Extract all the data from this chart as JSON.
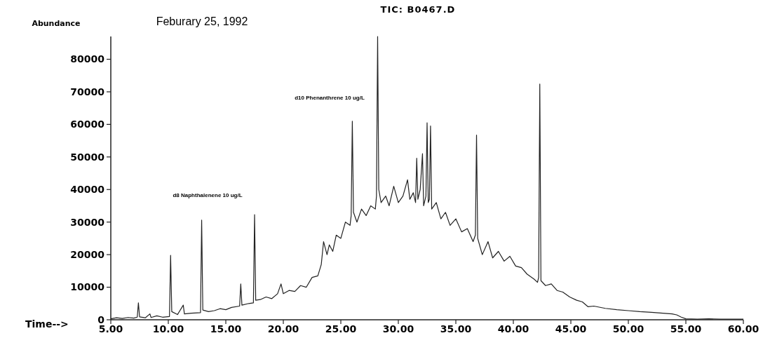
{
  "chart_data": {
    "type": "line",
    "title": "TIC: B0467.D",
    "subtitle": "Feburary 25, 1992",
    "ylabel": "Abundance",
    "xlabel": "Time-->",
    "annotations": [
      "d8 Naphthalenene 10 ug/L",
      "d10 Phenanthrene 10 ug/L"
    ],
    "xlim": [
      5,
      60
    ],
    "ylim": [
      0,
      87000
    ],
    "xticks": [
      {
        "value": 5,
        "label": "5.00"
      },
      {
        "value": 10,
        "label": "10.00"
      },
      {
        "value": 15,
        "label": "15.00"
      },
      {
        "value": 20,
        "label": "20.00"
      },
      {
        "value": 25,
        "label": "25.00"
      },
      {
        "value": 30,
        "label": "30.00"
      },
      {
        "value": 35,
        "label": "35.00"
      },
      {
        "value": 40,
        "label": "40.00"
      },
      {
        "value": 45,
        "label": "45.00"
      },
      {
        "value": 50,
        "label": "50.00"
      },
      {
        "value": 55,
        "label": "55.00"
      },
      {
        "value": 60,
        "label": "60.00"
      }
    ],
    "yticks": [
      0,
      10000,
      20000,
      30000,
      40000,
      50000,
      60000,
      70000,
      80000
    ],
    "grid": false,
    "marker": "none",
    "line_style": "solid",
    "series": [
      {
        "color": "#222222",
        "x": [
          5.0,
          5.5,
          6.0,
          6.5,
          7.0,
          7.3,
          7.4,
          7.5,
          8.0,
          8.4,
          8.5,
          9.0,
          9.5,
          10.1,
          10.2,
          10.3,
          10.8,
          11.3,
          11.4,
          12.0,
          12.8,
          12.9,
          13.0,
          13.5,
          14.0,
          14.5,
          15.0,
          15.5,
          16.2,
          16.3,
          16.4,
          17.0,
          17.4,
          17.5,
          17.6,
          18.0,
          18.5,
          19.0,
          19.5,
          19.8,
          20.0,
          20.5,
          21.0,
          21.5,
          22.0,
          22.5,
          23.0,
          23.3,
          23.5,
          23.8,
          24.0,
          24.3,
          24.6,
          25.0,
          25.4,
          25.8,
          25.9,
          26.0,
          26.1,
          26.4,
          26.8,
          27.2,
          27.6,
          28.0,
          28.1,
          28.2,
          28.3,
          28.5,
          28.9,
          29.2,
          29.6,
          30.0,
          30.4,
          30.8,
          31.0,
          31.3,
          31.5,
          31.6,
          31.7,
          31.9,
          32.1,
          32.2,
          32.4,
          32.5,
          32.6,
          32.7,
          32.8,
          32.9,
          33.3,
          33.7,
          34.1,
          34.5,
          35.0,
          35.5,
          36.0,
          36.5,
          36.7,
          36.8,
          36.9,
          37.3,
          37.8,
          38.2,
          38.7,
          39.2,
          39.7,
          40.2,
          40.7,
          41.2,
          41.8,
          42.1,
          42.2,
          42.3,
          42.4,
          42.8,
          43.3,
          43.8,
          44.3,
          44.9,
          45.5,
          46.0,
          46.5,
          47.0,
          48.0,
          49.0,
          50.0,
          51.0,
          52.0,
          53.0,
          53.8,
          54.2,
          54.6,
          55.0,
          56.0,
          57.0,
          58.0,
          59.0,
          60.0
        ],
        "values": [
          300,
          600,
          400,
          700,
          500,
          800,
          5200,
          900,
          600,
          1800,
          700,
          1200,
          800,
          1000,
          19800,
          2500,
          1600,
          4500,
          1800,
          2000,
          2200,
          30600,
          3000,
          2500,
          2800,
          3400,
          3100,
          3800,
          4200,
          11000,
          4500,
          5000,
          5200,
          32300,
          6000,
          6200,
          7000,
          6500,
          8000,
          11000,
          8000,
          9000,
          8700,
          10500,
          10000,
          13000,
          13500,
          17000,
          24000,
          20000,
          23000,
          21000,
          26000,
          25000,
          30000,
          29000,
          32000,
          61000,
          33000,
          30000,
          34000,
          32000,
          35000,
          34000,
          38000,
          87000,
          40000,
          36000,
          38000,
          35000,
          41000,
          36000,
          38000,
          43000,
          37000,
          39000,
          36000,
          49600,
          37000,
          40000,
          51000,
          35000,
          38000,
          60500,
          36000,
          37000,
          59500,
          34000,
          36000,
          31000,
          33000,
          29000,
          31000,
          27000,
          28000,
          24000,
          26000,
          56700,
          25000,
          20000,
          24000,
          19000,
          21000,
          18000,
          19500,
          16500,
          16000,
          14000,
          12500,
          11500,
          13000,
          72400,
          12000,
          10500,
          11000,
          9000,
          8500,
          7000,
          6000,
          5500,
          4000,
          4200,
          3500,
          3100,
          2800,
          2500,
          2300,
          2000,
          1800,
          1500,
          800,
          300,
          200,
          300,
          200,
          200,
          200
        ]
      }
    ]
  }
}
